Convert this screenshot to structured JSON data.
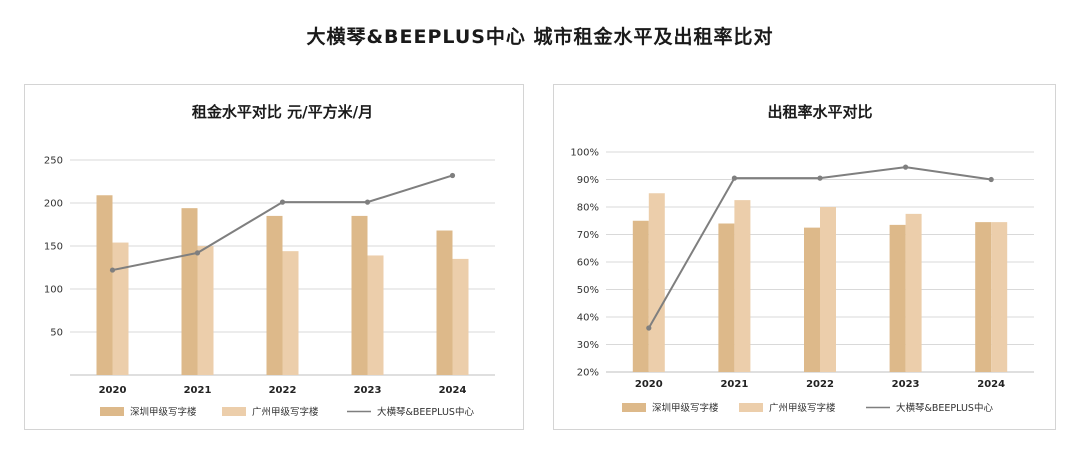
{
  "page_title": "大横琴&BEEPLUS中心  城市租金水平及出租率比对",
  "colors": {
    "series_a": "#ddb98a",
    "series_b": "#ecceab",
    "line": "#7f7f7f",
    "grid": "#d9d9d9"
  },
  "chart_data": [
    {
      "type": "bar",
      "title": "租金水平对比   元/平方米/月",
      "categories": [
        "2020",
        "2021",
        "2022",
        "2023",
        "2024"
      ],
      "ylim": [
        0,
        250
      ],
      "yticks": [
        50,
        100,
        150,
        200,
        250
      ],
      "ytick_labels": [
        "50",
        "100",
        "150",
        "200",
        "250"
      ],
      "grid": true,
      "legend_position": "bottom",
      "series": [
        {
          "name": "深圳甲级写字楼",
          "kind": "bar",
          "values": [
            209,
            194,
            185,
            185,
            168
          ]
        },
        {
          "name": "广州甲级写字楼",
          "kind": "bar",
          "values": [
            154,
            150,
            144,
            139,
            135
          ]
        },
        {
          "name": "大横琴&BEEPLUS中心",
          "kind": "line",
          "values": [
            122,
            142,
            201,
            201,
            232
          ]
        }
      ]
    },
    {
      "type": "bar",
      "title": "出租率水平对比",
      "categories": [
        "2020",
        "2021",
        "2022",
        "2023",
        "2024"
      ],
      "ylim": [
        20,
        100
      ],
      "yticks": [
        20,
        30,
        40,
        50,
        60,
        70,
        80,
        90,
        100
      ],
      "ytick_labels": [
        "20%",
        "30%",
        "40%",
        "50%",
        "60%",
        "70%",
        "80%",
        "90%",
        "100%"
      ],
      "grid": true,
      "legend_position": "bottom",
      "series": [
        {
          "name": "深圳甲级写字楼",
          "kind": "bar",
          "values": [
            75,
            74,
            72.5,
            73.5,
            74.5
          ]
        },
        {
          "name": "广州甲级写字楼",
          "kind": "bar",
          "values": [
            85,
            82.5,
            80,
            77.5,
            74.5
          ]
        },
        {
          "name": "大横琴&BEEPLUS中心",
          "kind": "line",
          "values": [
            36,
            90.5,
            90.5,
            94.5,
            90
          ]
        }
      ]
    }
  ]
}
